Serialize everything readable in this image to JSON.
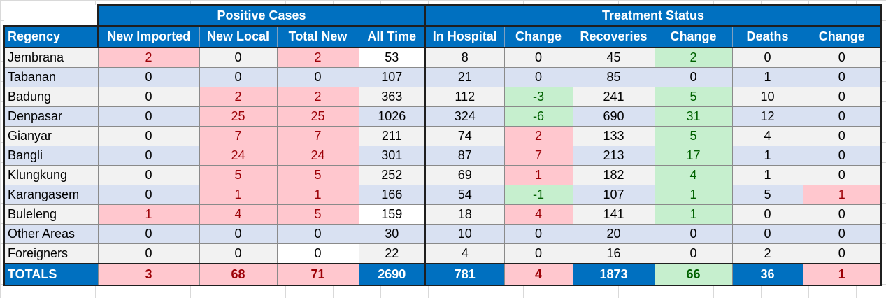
{
  "groups": {
    "positive": "Positive Cases",
    "treatment": "Treatment Status"
  },
  "headers": [
    "Regency",
    "New Imported",
    "New Local",
    "Total New",
    "All Time",
    "In Hospital",
    "Change",
    "Recoveries",
    "Change",
    "Deaths",
    "Change"
  ],
  "rows": [
    {
      "cells": [
        "Jembrana",
        "2",
        "0",
        "2",
        "53",
        "8",
        "0",
        "45",
        "2",
        "0",
        "0"
      ],
      "hl": [
        "",
        "pink",
        "",
        "pink",
        "white",
        "",
        "",
        "",
        "green",
        "",
        ""
      ]
    },
    {
      "cells": [
        "Tabanan",
        "0",
        "0",
        "0",
        "107",
        "21",
        "0",
        "85",
        "0",
        "1",
        "0"
      ],
      "hl": [
        "",
        "",
        "",
        "",
        "",
        "",
        "",
        "",
        "",
        "",
        ""
      ]
    },
    {
      "cells": [
        "Badung",
        "0",
        "2",
        "2",
        "363",
        "112",
        "-3",
        "241",
        "5",
        "10",
        "0"
      ],
      "hl": [
        "",
        "",
        "pink",
        "pink",
        "",
        "",
        "green",
        "",
        "green",
        "",
        ""
      ]
    },
    {
      "cells": [
        "Denpasar",
        "0",
        "25",
        "25",
        "1026",
        "324",
        "-6",
        "690",
        "31",
        "12",
        "0"
      ],
      "hl": [
        "",
        "",
        "pink",
        "pink",
        "",
        "",
        "green",
        "",
        "green",
        "",
        ""
      ]
    },
    {
      "cells": [
        "Gianyar",
        "0",
        "7",
        "7",
        "211",
        "74",
        "2",
        "133",
        "5",
        "4",
        "0"
      ],
      "hl": [
        "",
        "",
        "pink",
        "pink",
        "",
        "",
        "pink",
        "",
        "green",
        "",
        ""
      ]
    },
    {
      "cells": [
        "Bangli",
        "0",
        "24",
        "24",
        "301",
        "87",
        "7",
        "213",
        "17",
        "1",
        "0"
      ],
      "hl": [
        "",
        "",
        "pink",
        "pink",
        "",
        "",
        "pink",
        "",
        "green",
        "",
        ""
      ]
    },
    {
      "cells": [
        "Klungkung",
        "0",
        "5",
        "5",
        "252",
        "69",
        "1",
        "182",
        "4",
        "1",
        "0"
      ],
      "hl": [
        "",
        "",
        "pink",
        "pink",
        "",
        "",
        "pink",
        "",
        "green",
        "",
        ""
      ]
    },
    {
      "cells": [
        "Karangasem",
        "0",
        "1",
        "1",
        "166",
        "54",
        "-1",
        "107",
        "1",
        "5",
        "1"
      ],
      "hl": [
        "",
        "",
        "pink",
        "pink",
        "",
        "",
        "green",
        "",
        "green",
        "",
        "pink"
      ]
    },
    {
      "cells": [
        "Buleleng",
        "1",
        "4",
        "5",
        "159",
        "18",
        "4",
        "141",
        "1",
        "0",
        "0"
      ],
      "hl": [
        "",
        "pink",
        "pink",
        "pink",
        "white",
        "",
        "pink",
        "",
        "green",
        "",
        ""
      ]
    },
    {
      "cells": [
        "Other Areas",
        "0",
        "0",
        "0",
        "30",
        "10",
        "0",
        "20",
        "0",
        "0",
        "0"
      ],
      "hl": [
        "",
        "",
        "",
        "",
        "",
        "",
        "",
        "",
        "",
        "",
        ""
      ]
    },
    {
      "cells": [
        "Foreigners",
        "0",
        "0",
        "0",
        "22",
        "4",
        "0",
        "16",
        "0",
        "2",
        "0"
      ],
      "hl": [
        "",
        "",
        "",
        "white",
        "",
        "",
        "",
        "",
        "",
        "",
        ""
      ]
    }
  ],
  "totals": {
    "cells": [
      "TOTALS",
      "3",
      "68",
      "71",
      "2690",
      "781",
      "4",
      "1873",
      "66",
      "36",
      "1"
    ],
    "hl": [
      "",
      "pink",
      "pink",
      "pink",
      "",
      "",
      "pink",
      "",
      "green",
      "",
      "pink"
    ]
  }
}
